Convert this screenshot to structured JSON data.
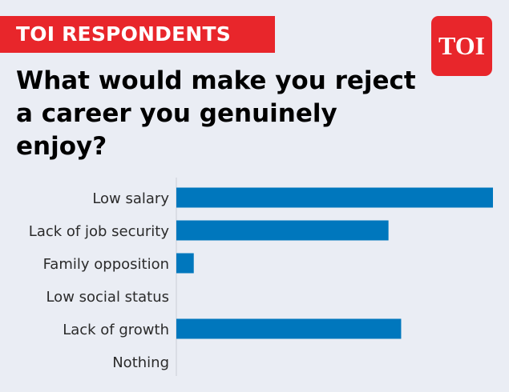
{
  "brand": {
    "tag": "TOI RESPONDENTS",
    "logo_text": "TOI"
  },
  "headline": "What would make you reject a career you genuinely enjoy?",
  "colors": {
    "background": "#eaedf4",
    "accent_red": "#e8262b",
    "bar": "#0077bd",
    "axis": "#c9cdd6"
  },
  "chart_data": {
    "type": "bar",
    "orientation": "horizontal",
    "title": "What would make you reject a career you genuinely enjoy?",
    "categories": [
      "Low salary",
      "Lack of job security",
      "Family opposition",
      "Low social status",
      "Lack of growth",
      "Nothing"
    ],
    "values": [
      100,
      67,
      5.5,
      0,
      71,
      0
    ],
    "xlim": [
      0,
      100
    ],
    "grid": false,
    "legend": "none"
  }
}
